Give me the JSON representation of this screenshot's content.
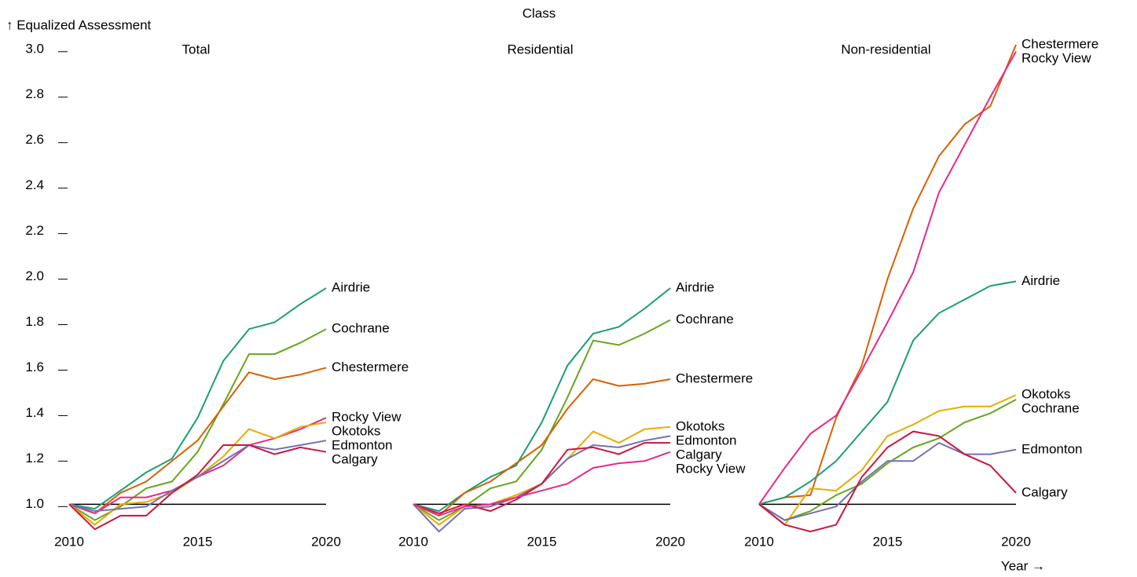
{
  "facet_label": "Class",
  "chart_data": [
    {
      "type": "line",
      "title": "Total",
      "y_label": "↑ Equalized Assessment",
      "x": [
        2010,
        2011,
        2012,
        2013,
        2014,
        2015,
        2016,
        2017,
        2018,
        2019,
        2020
      ],
      "xlim": [
        2010,
        2020
      ],
      "xticks": [
        2010,
        2015,
        2020
      ],
      "ylim": [
        0.87,
        3.02
      ],
      "yticks": [
        {
          "value": 1,
          "label": "1.0"
        },
        1.2,
        1.4,
        1.6,
        1.8,
        {
          "value": 2,
          "label": "2.0"
        },
        2.2,
        2.4,
        2.6,
        2.8,
        {
          "value": 3,
          "label": "3.0"
        }
      ],
      "rule_y": 1,
      "series": [
        {
          "name": "Airdrie",
          "color": "#1b9e77",
          "values": [
            1.0,
            0.98,
            1.06,
            1.14,
            1.2,
            1.38,
            1.63,
            1.77,
            1.8,
            1.88,
            1.95
          ]
        },
        {
          "name": "Cochrane",
          "color": "#66a61e",
          "values": [
            1.0,
            0.93,
            0.99,
            1.07,
            1.1,
            1.23,
            1.44,
            1.66,
            1.66,
            1.71,
            1.77
          ]
        },
        {
          "name": "Chestermere",
          "color": "#d95f02",
          "values": [
            1.0,
            0.96,
            1.05,
            1.1,
            1.19,
            1.28,
            1.43,
            1.58,
            1.55,
            1.57,
            1.6
          ]
        },
        {
          "name": "Rocky View",
          "color": "#e7298a",
          "values": [
            1.0,
            0.96,
            1.03,
            1.03,
            1.06,
            1.12,
            1.17,
            1.26,
            1.29,
            1.33,
            1.38
          ]
        },
        {
          "name": "Okotoks",
          "color": "#e6ab02",
          "values": [
            1.0,
            0.91,
            1.0,
            1.01,
            1.05,
            1.12,
            1.21,
            1.33,
            1.29,
            1.34,
            1.36
          ]
        },
        {
          "name": "Edmonton",
          "color": "#7570b3",
          "values": [
            1.0,
            0.97,
            0.98,
            0.99,
            1.06,
            1.12,
            1.19,
            1.26,
            1.24,
            1.26,
            1.28
          ]
        },
        {
          "name": "Calgary",
          "color": "#c9163d",
          "values": [
            1.0,
            0.89,
            0.95,
            0.95,
            1.05,
            1.13,
            1.26,
            1.26,
            1.22,
            1.25,
            1.23
          ]
        }
      ]
    },
    {
      "type": "line",
      "title": "Residential",
      "x": [
        2010,
        2011,
        2012,
        2013,
        2014,
        2015,
        2016,
        2017,
        2018,
        2019,
        2020
      ],
      "xlim": [
        2010,
        2020
      ],
      "xticks": [
        2010,
        2015,
        2020
      ],
      "ylim": [
        0.87,
        3.02
      ],
      "rule_y": 1,
      "series": [
        {
          "name": "Airdrie",
          "color": "#1b9e77",
          "values": [
            1.0,
            0.97,
            1.05,
            1.12,
            1.17,
            1.36,
            1.61,
            1.75,
            1.78,
            1.86,
            1.95
          ]
        },
        {
          "name": "Cochrane",
          "color": "#66a61e",
          "values": [
            1.0,
            0.93,
            0.99,
            1.07,
            1.1,
            1.24,
            1.47,
            1.72,
            1.7,
            1.75,
            1.81
          ]
        },
        {
          "name": "Chestermere",
          "color": "#d95f02",
          "values": [
            1.0,
            0.95,
            1.05,
            1.1,
            1.18,
            1.26,
            1.42,
            1.55,
            1.52,
            1.53,
            1.55
          ]
        },
        {
          "name": "Okotoks",
          "color": "#e6ab02",
          "values": [
            1.0,
            0.91,
            0.99,
            1.0,
            1.04,
            1.09,
            1.2,
            1.32,
            1.27,
            1.33,
            1.34
          ]
        },
        {
          "name": "Edmonton",
          "color": "#7570b3",
          "values": [
            1.0,
            0.88,
            0.98,
            0.99,
            1.03,
            1.09,
            1.2,
            1.26,
            1.25,
            1.28,
            1.3
          ]
        },
        {
          "name": "Calgary",
          "color": "#c9163d",
          "values": [
            1.0,
            0.96,
            1.0,
            0.97,
            1.02,
            1.09,
            1.24,
            1.25,
            1.22,
            1.27,
            1.27
          ]
        },
        {
          "name": "Rocky View",
          "color": "#e7298a",
          "values": [
            1.0,
            0.95,
            0.99,
            1.0,
            1.03,
            1.06,
            1.09,
            1.16,
            1.18,
            1.19,
            1.23
          ]
        }
      ]
    },
    {
      "type": "line",
      "title": "Non-residential",
      "x_label": "Year →",
      "x": [
        2010,
        2011,
        2012,
        2013,
        2014,
        2015,
        2016,
        2017,
        2018,
        2019,
        2020
      ],
      "xlim": [
        2010,
        2020
      ],
      "xticks": [
        2010,
        2015,
        2020
      ],
      "ylim": [
        0.87,
        3.02
      ],
      "rule_y": 1,
      "series": [
        {
          "name": "Chestermere",
          "color": "#d95f02",
          "values": [
            1.0,
            1.03,
            1.04,
            1.38,
            1.61,
            1.99,
            2.3,
            2.53,
            2.67,
            2.75,
            3.02
          ]
        },
        {
          "name": "Rocky View",
          "color": "#e7298a",
          "values": [
            1.0,
            1.16,
            1.31,
            1.39,
            1.59,
            1.8,
            2.02,
            2.37,
            2.58,
            2.79,
            2.99
          ]
        },
        {
          "name": "Airdrie",
          "color": "#1b9e77",
          "values": [
            1.0,
            1.03,
            1.1,
            1.19,
            1.32,
            1.45,
            1.72,
            1.84,
            1.9,
            1.96,
            1.98
          ]
        },
        {
          "name": "Okotoks",
          "color": "#e6ab02",
          "values": [
            1.0,
            0.91,
            1.07,
            1.06,
            1.15,
            1.3,
            1.35,
            1.41,
            1.43,
            1.43,
            1.48
          ]
        },
        {
          "name": "Cochrane",
          "color": "#66a61e",
          "values": [
            1.0,
            0.93,
            0.97,
            1.04,
            1.09,
            1.18,
            1.25,
            1.29,
            1.36,
            1.4,
            1.46
          ]
        },
        {
          "name": "Edmonton",
          "color": "#7570b3",
          "values": [
            1.0,
            0.93,
            0.96,
            0.99,
            1.1,
            1.19,
            1.19,
            1.27,
            1.22,
            1.22,
            1.24
          ]
        },
        {
          "name": "Calgary",
          "color": "#c9163d",
          "values": [
            1.0,
            0.91,
            0.88,
            0.91,
            1.12,
            1.25,
            1.32,
            1.3,
            1.22,
            1.17,
            1.05
          ]
        }
      ]
    }
  ]
}
